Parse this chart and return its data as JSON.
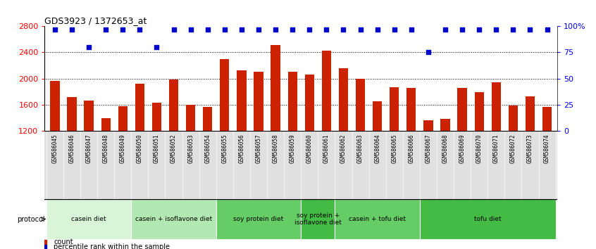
{
  "title": "GDS3923 / 1372653_at",
  "samples": [
    "GSM586045",
    "GSM586046",
    "GSM586047",
    "GSM586048",
    "GSM586049",
    "GSM586050",
    "GSM586051",
    "GSM586052",
    "GSM586053",
    "GSM586054",
    "GSM586055",
    "GSM586056",
    "GSM586057",
    "GSM586058",
    "GSM586059",
    "GSM586060",
    "GSM586061",
    "GSM586062",
    "GSM586063",
    "GSM586064",
    "GSM586065",
    "GSM586066",
    "GSM586067",
    "GSM586068",
    "GSM586069",
    "GSM586070",
    "GSM586071",
    "GSM586072",
    "GSM586073",
    "GSM586074"
  ],
  "bar_values": [
    1960,
    1720,
    1660,
    1390,
    1580,
    1920,
    1630,
    1980,
    1600,
    1560,
    2300,
    2120,
    2100,
    2510,
    2100,
    2060,
    2430,
    2160,
    1990,
    1650,
    1870,
    1860,
    1360,
    1380,
    1850,
    1790,
    1940,
    1590,
    1730,
    1560
  ],
  "percentile_values": [
    97,
    97,
    80,
    97,
    97,
    97,
    80,
    97,
    97,
    97,
    97,
    97,
    97,
    97,
    97,
    97,
    97,
    97,
    97,
    97,
    97,
    97,
    75,
    97,
    97,
    97,
    97,
    97,
    97,
    97
  ],
  "bar_color": "#cc2200",
  "percentile_color": "#0000cc",
  "ymin": 1200,
  "ymax": 2800,
  "yticks_left": [
    1200,
    1600,
    2000,
    2400,
    2800
  ],
  "yticks_right": [
    0,
    25,
    50,
    75,
    100
  ],
  "right_ylabels": [
    "0",
    "25",
    "50",
    "75",
    "100%"
  ],
  "grid_lines": [
    1600,
    2000,
    2400
  ],
  "protocol_groups": [
    {
      "label": "casein diet",
      "start": 0,
      "end": 5,
      "color": "#d8f5d8"
    },
    {
      "label": "casein + isoflavone diet",
      "start": 5,
      "end": 10,
      "color": "#b2e8b2"
    },
    {
      "label": "soy protein diet",
      "start": 10,
      "end": 15,
      "color": "#66cc66"
    },
    {
      "label": "soy protein +\nisoflavone diet",
      "start": 15,
      "end": 17,
      "color": "#44bb44"
    },
    {
      "label": "casein + tofu diet",
      "start": 17,
      "end": 22,
      "color": "#66cc66"
    },
    {
      "label": "tofu diet",
      "start": 22,
      "end": 30,
      "color": "#44bb44"
    }
  ],
  "bar_width": 0.55,
  "fig_width": 8.46,
  "fig_height": 3.54,
  "dpi": 100
}
